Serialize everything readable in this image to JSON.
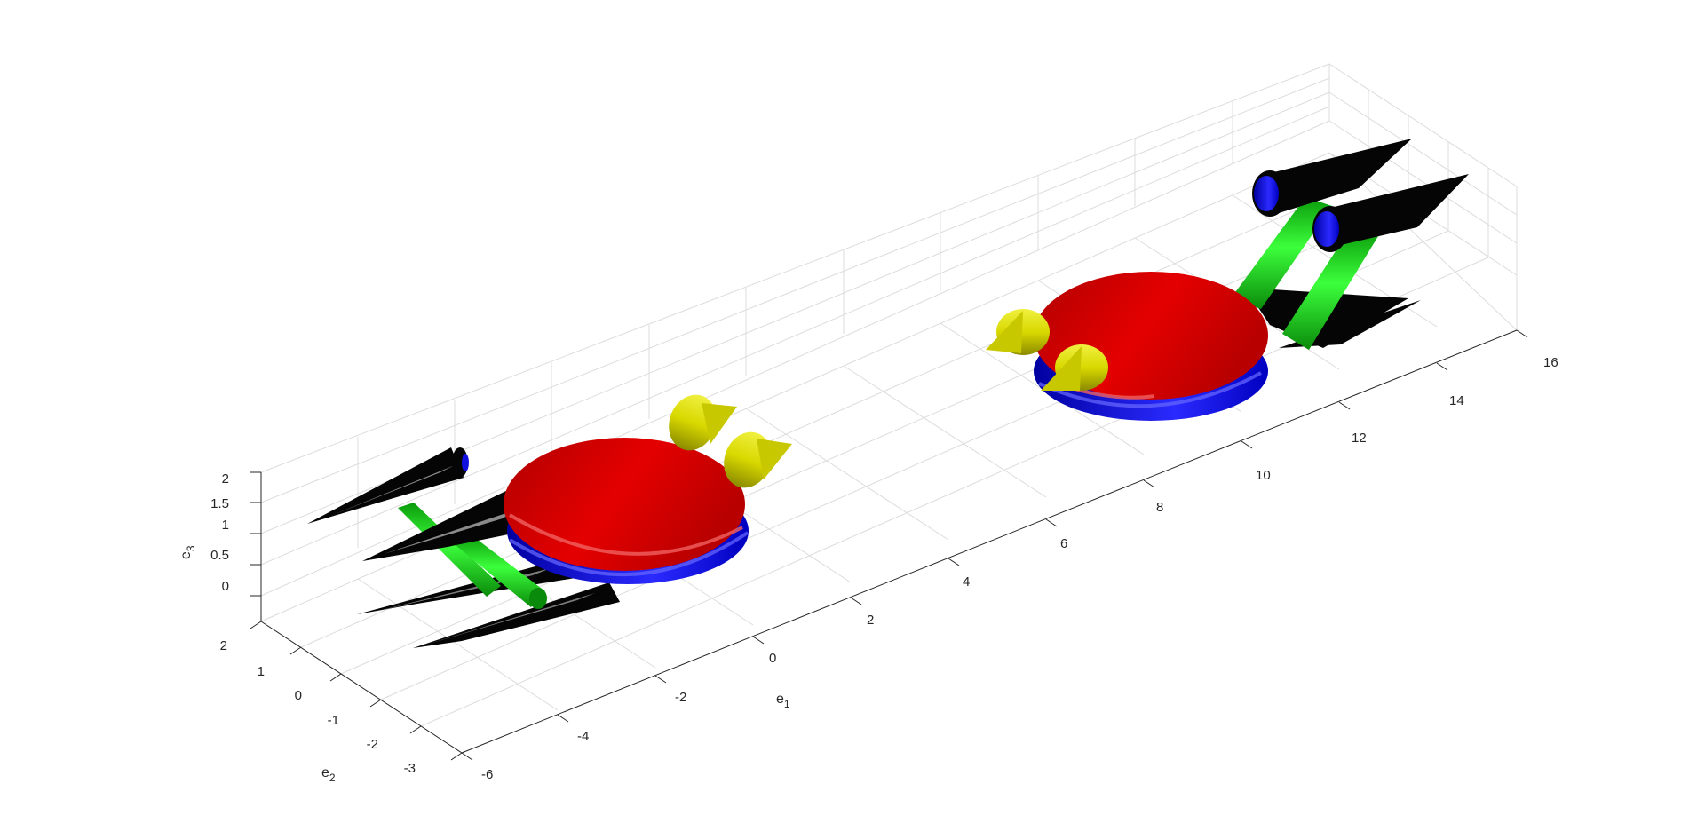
{
  "axes": {
    "e1": {
      "label_main": "e",
      "label_sub": "1",
      "range": [
        -6,
        16
      ],
      "ticks": [
        "-6",
        "-4",
        "-2",
        "0",
        "2",
        "4",
        "6",
        "8",
        "10",
        "12",
        "14",
        "16"
      ]
    },
    "e2": {
      "label_main": "e",
      "label_sub": "2",
      "range": [
        -3,
        2
      ],
      "ticks": [
        "-3",
        "-2",
        "-1",
        "0",
        "1",
        "2"
      ]
    },
    "e3": {
      "label_main": "e",
      "label_sub": "3",
      "range": [
        0,
        2
      ],
      "ticks": [
        "0",
        "0.5",
        "1",
        "1.5",
        "2"
      ]
    },
    "grid": true,
    "box": "open-3d"
  },
  "colors": {
    "hull": "#e00000",
    "hull_dark": "#9a0000",
    "ring": "#1010e0",
    "boom": "#10d010",
    "nose": "#d8d800",
    "pod": "#050505",
    "pod_highlight": "#9a9a9a",
    "grid": "#dcdcdc",
    "axis": "#262626"
  },
  "objects": [
    {
      "name": "vehicle-near",
      "parts": [
        "red-dome",
        "blue-ring",
        "green-booms",
        "black-pods",
        "yellow-cones"
      ]
    },
    {
      "name": "vehicle-far",
      "parts": [
        "red-dome",
        "blue-ring",
        "green-booms",
        "black-pods",
        "yellow-cones"
      ]
    }
  ]
}
